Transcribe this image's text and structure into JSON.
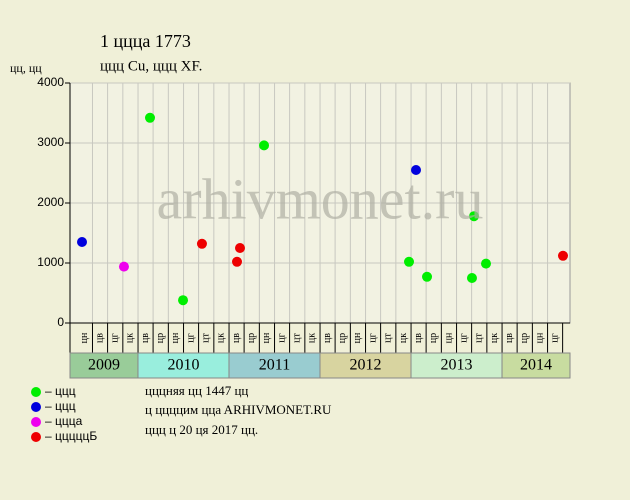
{
  "chart_data": {
    "type": "scatter",
    "title": "1 ццца 1773",
    "subtitle": "ццц Cu, ццц XF.",
    "y_label": "цц, цц",
    "watermark": "arhivmonet.ru",
    "notes": [
      "цццняя цц 1447 цц",
      "ц ццццим ццa ARHIVMONET.RU",
      "ццц ц 20 ця 2017 цц."
    ],
    "ylim": [
      0,
      4000
    ],
    "yticks": [
      0,
      1000,
      2000,
      3000,
      4000
    ],
    "grid": true,
    "xlim": [
      2009.253,
      2014.747
    ],
    "years": [
      {
        "label": "2009",
        "value": 2009,
        "color": "#99cc99"
      },
      {
        "label": "2010",
        "value": 2010,
        "color": "#99eedd"
      },
      {
        "label": "2011",
        "value": 2011,
        "color": "#99ccd0"
      },
      {
        "label": "2012",
        "value": 2012,
        "color": "#d8d4a0"
      },
      {
        "label": "2013",
        "value": 2013,
        "color": "#cceecc"
      },
      {
        "label": "2014",
        "value": 2014,
        "color": "#c8dca0"
      }
    ],
    "xticks": [
      {
        "value": 2009.417,
        "label": "цн"
      },
      {
        "value": 2009.583,
        "label": "цв"
      },
      {
        "value": 2009.75,
        "label": "цг"
      },
      {
        "value": 2009.917,
        "label": "цк"
      },
      {
        "value": 2010.083,
        "label": "цв"
      },
      {
        "value": 2010.25,
        "label": "цр"
      },
      {
        "value": 2010.417,
        "label": "цн"
      },
      {
        "value": 2010.583,
        "label": "цг"
      },
      {
        "value": 2010.75,
        "label": "цт"
      },
      {
        "value": 2010.917,
        "label": "цк"
      },
      {
        "value": 2011.083,
        "label": "цв"
      },
      {
        "value": 2011.25,
        "label": "цр"
      },
      {
        "value": 2011.417,
        "label": "цн"
      },
      {
        "value": 2011.583,
        "label": "цг"
      },
      {
        "value": 2011.75,
        "label": "цт"
      },
      {
        "value": 2011.917,
        "label": "цк"
      },
      {
        "value": 2012.083,
        "label": "цв"
      },
      {
        "value": 2012.25,
        "label": "цр"
      },
      {
        "value": 2012.417,
        "label": "цн"
      },
      {
        "value": 2012.583,
        "label": "цг"
      },
      {
        "value": 2012.75,
        "label": "цт"
      },
      {
        "value": 2012.917,
        "label": "цк"
      },
      {
        "value": 2013.083,
        "label": "цв"
      },
      {
        "value": 2013.25,
        "label": "цр"
      },
      {
        "value": 2013.417,
        "label": "цн"
      },
      {
        "value": 2013.583,
        "label": "цг"
      },
      {
        "value": 2013.75,
        "label": "цт"
      },
      {
        "value": 2013.917,
        "label": "цк"
      },
      {
        "value": 2014.083,
        "label": "цв"
      },
      {
        "value": 2014.25,
        "label": "цр"
      },
      {
        "value": 2014.417,
        "label": "цн"
      },
      {
        "value": 2014.583,
        "label": "цг"
      }
    ],
    "series": [
      {
        "name": "– ццц",
        "color": "#00ee00",
        "x": [
          2010.132,
          2010.495,
          2011.385,
          2012.978,
          2013.176,
          2013.692,
          2013.67,
          2013.824
        ],
        "values": [
          3420,
          380,
          2960,
          1020,
          770,
          1780,
          750,
          990
        ]
      },
      {
        "name": "– ццц",
        "color": "#0000dd",
        "x": [
          2009.385,
          2013.055
        ],
        "values": [
          1350,
          2550
        ]
      },
      {
        "name": "– ццца",
        "color": "#ee00ee",
        "x": [
          2009.846
        ],
        "values": [
          940
        ]
      },
      {
        "name": "– цццццБ",
        "color": "#ee0000",
        "x": [
          2010.703,
          2011.088,
          2011.121,
          2014.67
        ],
        "values": [
          1320,
          1020,
          1250,
          1120
        ]
      }
    ]
  }
}
